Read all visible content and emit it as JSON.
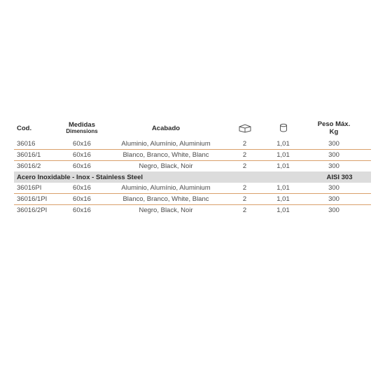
{
  "colors": {
    "divider": "#d9a06b",
    "section_bg": "#dcdcdc",
    "text": "#4a4a4a",
    "header_text": "#2a2a2a",
    "icon_stroke": "#555555"
  },
  "headers": {
    "cod": "Cod.",
    "medidas": "Medidas",
    "medidas_sub": "Dimensions",
    "acabado": "Acabado",
    "peso_max": "Peso Máx.",
    "peso_kg": "Kg"
  },
  "section1": {
    "rows": [
      {
        "cod": "36016",
        "med": "60x16",
        "acab": "Aluminio, Alumínio, Aluminium",
        "box": "2",
        "wt": "1,01",
        "peso": "300"
      },
      {
        "cod": "36016/1",
        "med": "60x16",
        "acab": "Blanco, Branco, White, Blanc",
        "box": "2",
        "wt": "1,01",
        "peso": "300"
      },
      {
        "cod": "36016/2",
        "med": "60x16",
        "acab": "Negro, Black, Noir",
        "box": "2",
        "wt": "1,01",
        "peso": "300"
      }
    ]
  },
  "section_header": {
    "left": "Acero Inoxidable - Inox - Stainless Steel",
    "right": "AISI 303"
  },
  "section2": {
    "rows": [
      {
        "cod": "36016PI",
        "med": "60x16",
        "acab": "Aluminio, Alumínio, Aluminium",
        "box": "2",
        "wt": "1,01",
        "peso": "300"
      },
      {
        "cod": "36016/1PI",
        "med": "60x16",
        "acab": "Blanco, Branco, White, Blanc",
        "box": "2",
        "wt": "1,01",
        "peso": "300"
      },
      {
        "cod": "36016/2PI",
        "med": "60x16",
        "acab": "Negro, Black, Noir",
        "box": "2",
        "wt": "1,01",
        "peso": "300"
      }
    ]
  }
}
